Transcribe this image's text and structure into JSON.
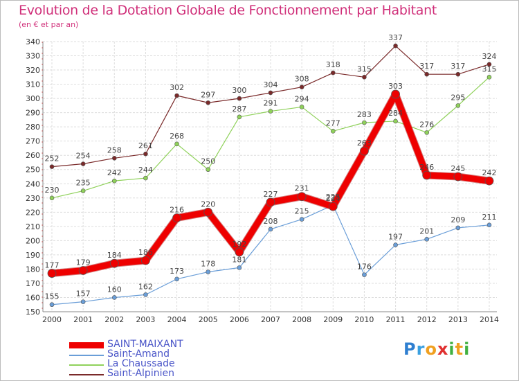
{
  "title": "Evolution de la Dotation Globale de Fonctionnement par Habitant",
  "subtitle": "(en € et par an)",
  "logo": {
    "letters": [
      "P",
      "r",
      "o",
      "x",
      "i",
      "t",
      "i"
    ],
    "colors": [
      "#2f7fd0",
      "#3aa0e0",
      "#f0a020",
      "#e03030",
      "#40b040",
      "#f0a020",
      "#40b040"
    ]
  },
  "chart_data": {
    "type": "line",
    "x": [
      "2000",
      "2001",
      "2002",
      "2003",
      "2004",
      "2005",
      "2006",
      "2007",
      "2008",
      "2009",
      "2010",
      "2011",
      "2012",
      "2013",
      "2014"
    ],
    "ylim": [
      150,
      340
    ],
    "yticks": [
      150,
      160,
      170,
      180,
      190,
      200,
      210,
      220,
      230,
      240,
      250,
      260,
      270,
      280,
      290,
      300,
      310,
      320,
      330,
      340
    ],
    "grid": true,
    "legend": "bottom-left",
    "series": [
      {
        "name": "Saint-Alpinien",
        "color": "#7a2a2a",
        "values": [
          252,
          254,
          258,
          261,
          302,
          297,
          300,
          304,
          308,
          318,
          315,
          337,
          317,
          317,
          324
        ]
      },
      {
        "name": "La Chaussade",
        "color": "#8fd15a",
        "values": [
          230,
          235,
          242,
          244,
          268,
          250,
          287,
          291,
          294,
          277,
          283,
          284,
          276,
          295,
          315
        ]
      },
      {
        "name": "Saint-Amand",
        "color": "#6a9ed8",
        "values": [
          155,
          157,
          160,
          162,
          173,
          178,
          181,
          208,
          215,
          225,
          176,
          197,
          201,
          209,
          211
        ]
      },
      {
        "name": "SAINT-MAIXANT",
        "color": "#ee0000",
        "values": [
          177,
          179,
          184,
          186,
          216,
          220,
          192,
          227,
          231,
          224,
          263,
          303,
          246,
          245,
          242
        ]
      }
    ]
  }
}
